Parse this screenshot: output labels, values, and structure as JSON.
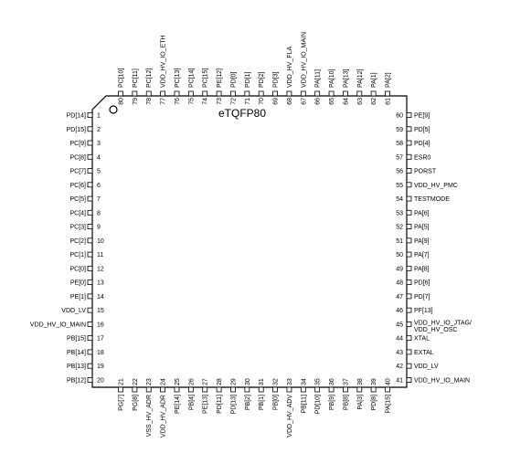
{
  "package_label": "eTQFP80",
  "pins": {
    "left": [
      {
        "num": "1",
        "name": "PD[14]"
      },
      {
        "num": "2",
        "name": "PD[15]"
      },
      {
        "num": "3",
        "name": "PC[9]"
      },
      {
        "num": "4",
        "name": "PC[8]"
      },
      {
        "num": "5",
        "name": "PC[7]"
      },
      {
        "num": "6",
        "name": "PC[6]"
      },
      {
        "num": "7",
        "name": "PC[5]"
      },
      {
        "num": "8",
        "name": "PC[4]"
      },
      {
        "num": "9",
        "name": "PC[3]"
      },
      {
        "num": "10",
        "name": "PC[2]"
      },
      {
        "num": "11",
        "name": "PC[1]"
      },
      {
        "num": "12",
        "name": "PC[0]"
      },
      {
        "num": "13",
        "name": "PE[0]"
      },
      {
        "num": "14",
        "name": "PE[1]"
      },
      {
        "num": "15",
        "name": "VDD_LV"
      },
      {
        "num": "16",
        "name": "VDD_HV_IO_MAIN"
      },
      {
        "num": "17",
        "name": "PB[15]"
      },
      {
        "num": "18",
        "name": "PB[14]"
      },
      {
        "num": "19",
        "name": "PB[13]"
      },
      {
        "num": "20",
        "name": "PB[12]"
      }
    ],
    "bottom": [
      {
        "num": "21",
        "name": "PG[7]"
      },
      {
        "num": "22",
        "name": "PG[8]"
      },
      {
        "num": "23",
        "name": "VSS_HV_ADR"
      },
      {
        "num": "24",
        "name": "VDD_HV_ADR"
      },
      {
        "num": "25",
        "name": "PE[14]"
      },
      {
        "num": "26",
        "name": "PB[4]"
      },
      {
        "num": "27",
        "name": "PE[13]"
      },
      {
        "num": "28",
        "name": "PD[11]"
      },
      {
        "num": "29",
        "name": "PD[13]"
      },
      {
        "num": "30",
        "name": "PB[2]"
      },
      {
        "num": "31",
        "name": "PB[1]"
      },
      {
        "num": "32",
        "name": "PB[0]"
      },
      {
        "num": "33",
        "name": "VDD_HV_ADV"
      },
      {
        "num": "34",
        "name": "PB[11]"
      },
      {
        "num": "35",
        "name": "PD[10]"
      },
      {
        "num": "36",
        "name": "PB[9]"
      },
      {
        "num": "37",
        "name": "PB[8]"
      },
      {
        "num": "38",
        "name": "PA[3]"
      },
      {
        "num": "39",
        "name": "PD[8]"
      },
      {
        "num": "40",
        "name": "PA[15]"
      }
    ],
    "right": [
      {
        "num": "60",
        "name": "PE[9]"
      },
      {
        "num": "59",
        "name": "PD[5]"
      },
      {
        "num": "58",
        "name": "PD[4]"
      },
      {
        "num": "57",
        "name": "ESR0"
      },
      {
        "num": "56",
        "name": "PORST"
      },
      {
        "num": "55",
        "name": "VDD_HV_PMC"
      },
      {
        "num": "54",
        "name": "TESTMODE"
      },
      {
        "num": "53",
        "name": "PA[6]"
      },
      {
        "num": "52",
        "name": "PA[5]"
      },
      {
        "num": "51",
        "name": "PA[9]"
      },
      {
        "num": "50",
        "name": "PA[7]"
      },
      {
        "num": "49",
        "name": "PA[8]"
      },
      {
        "num": "48",
        "name": "PD[6]"
      },
      {
        "num": "47",
        "name": "PD[7]"
      },
      {
        "num": "46",
        "name": "PF[13]"
      },
      {
        "num": "45",
        "name": "VDD_HV_IO_JTAG/",
        "name2": "VDD_HV_OSC"
      },
      {
        "num": "44",
        "name": "XTAL"
      },
      {
        "num": "43",
        "name": "EXTAL"
      },
      {
        "num": "42",
        "name": "VDD_LV"
      },
      {
        "num": "41",
        "name": "VDD_HV_IO_MAIN"
      }
    ],
    "top": [
      {
        "num": "80",
        "name": "PC[10]"
      },
      {
        "num": "79",
        "name": "PC[11]"
      },
      {
        "num": "78",
        "name": "PC[12]"
      },
      {
        "num": "77",
        "name": "VDD_HV_IO_ETH"
      },
      {
        "num": "76",
        "name": "PC[13]"
      },
      {
        "num": "75",
        "name": "PC[14]"
      },
      {
        "num": "74",
        "name": "PC[15]"
      },
      {
        "num": "73",
        "name": "PE[12]"
      },
      {
        "num": "72",
        "name": "PD[0]"
      },
      {
        "num": "71",
        "name": "PD[1]"
      },
      {
        "num": "70",
        "name": "PD[2]"
      },
      {
        "num": "69",
        "name": "PD[3]"
      },
      {
        "num": "68",
        "name": "VDD_HV_FLA"
      },
      {
        "num": "67",
        "name": "VDD_HV_IO_MAIN"
      },
      {
        "num": "66",
        "name": "PA[11]"
      },
      {
        "num": "65",
        "name": "PA[10]"
      },
      {
        "num": "64",
        "name": "PA[13]"
      },
      {
        "num": "63",
        "name": "PA[12]"
      },
      {
        "num": "62",
        "name": "PA[1]"
      },
      {
        "num": "61",
        "name": "PA[2]"
      }
    ]
  }
}
